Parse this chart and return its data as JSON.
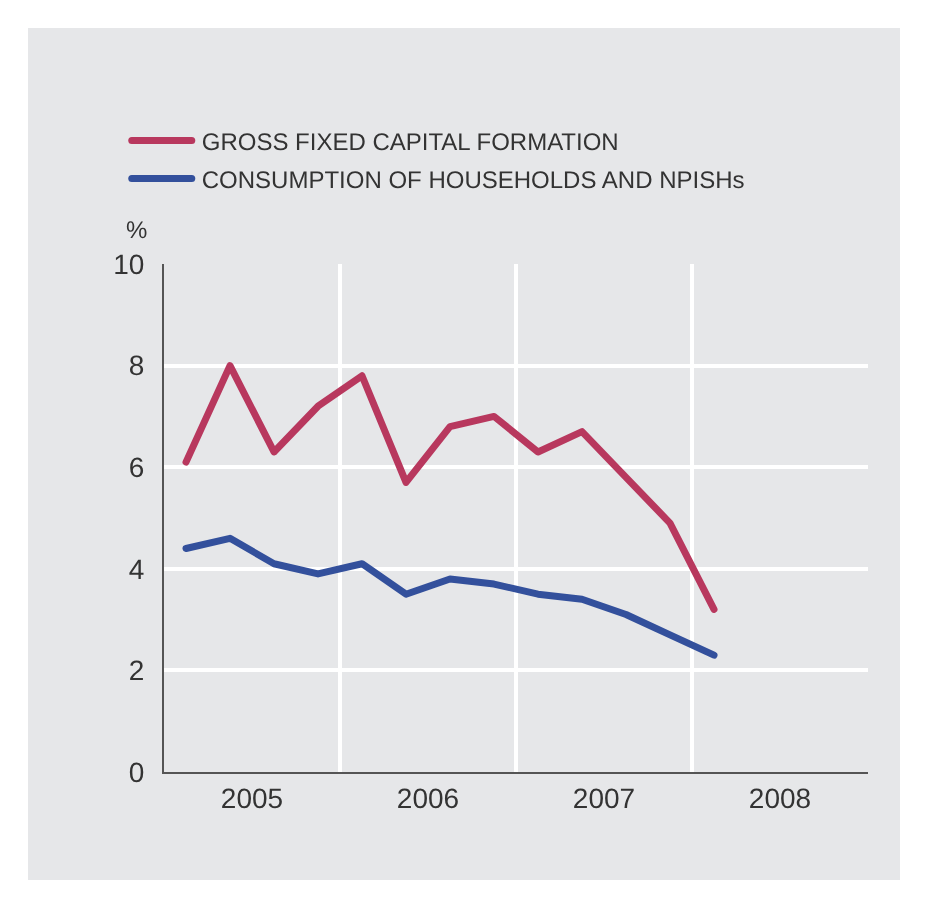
{
  "chart_data": {
    "type": "line",
    "ylabel": "%",
    "x": [
      2005.125,
      2005.375,
      2005.625,
      2005.875,
      2006.125,
      2006.375,
      2006.625,
      2006.875,
      2007.125,
      2007.375,
      2007.625,
      2007.875,
      2008.125
    ],
    "series": [
      {
        "name": "GROSS FIXED CAPITAL FORMATION",
        "color": "#b8385e",
        "values": [
          6.1,
          8.0,
          6.3,
          7.2,
          7.8,
          5.7,
          6.8,
          7.0,
          6.3,
          6.7,
          5.8,
          4.9,
          3.2
        ]
      },
      {
        "name": "CONSUMPTION OF HOUSEHOLDS AND NPISHs",
        "color": "#33509c",
        "values": [
          4.4,
          4.6,
          4.1,
          3.9,
          4.1,
          3.5,
          3.8,
          3.7,
          3.5,
          3.4,
          3.1,
          2.7,
          2.3
        ]
      }
    ],
    "xlim": [
      2005,
      2009
    ],
    "xticks": [
      {
        "value": 2005.5,
        "label": "2005"
      },
      {
        "value": 2006.5,
        "label": "2006"
      },
      {
        "value": 2007.5,
        "label": "2007"
      },
      {
        "value": 2008.5,
        "label": "2008"
      }
    ],
    "ylim": [
      0,
      10
    ],
    "yticks": [
      0,
      2,
      4,
      6,
      8,
      10
    ],
    "grid": true,
    "legend": "top left",
    "marker": "none",
    "line_style": "solid"
  }
}
